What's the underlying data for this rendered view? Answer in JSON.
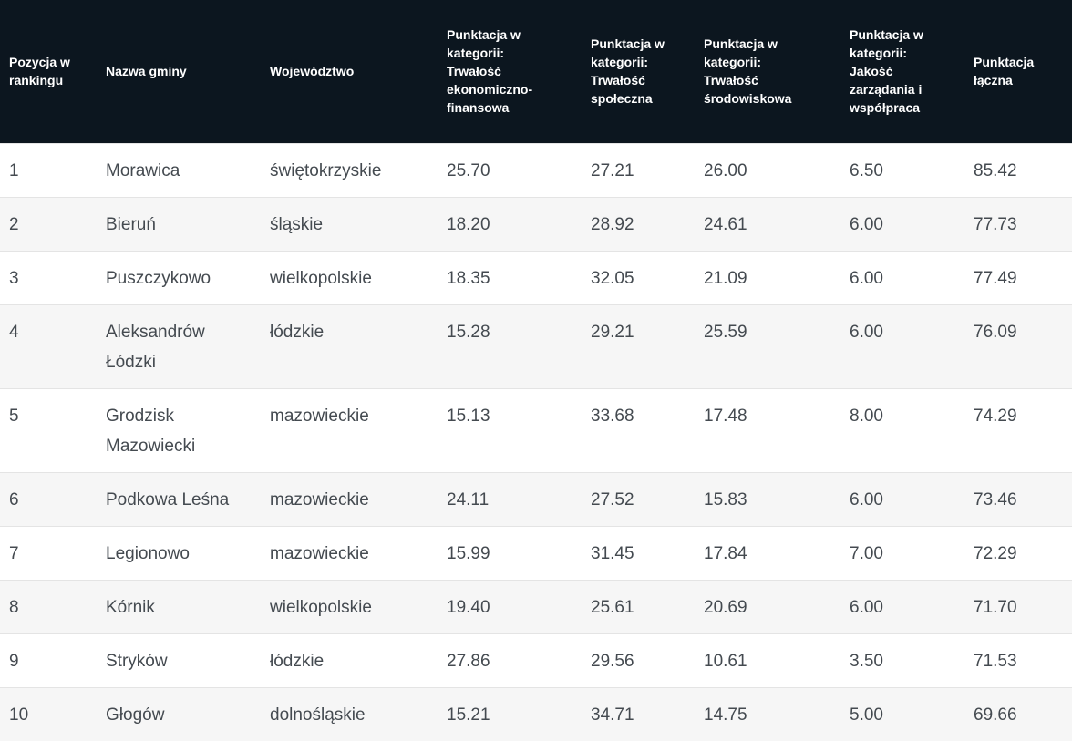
{
  "table": {
    "headers": [
      "Pozycja w\nrankingu",
      "Nazwa gminy",
      "Województwo",
      "Punktacja w\nkategorii:\nTrwałość\nekonomiczno-\nfinansowa",
      "Punktacja w\nkategorii:\nTrwałość\nspołeczna",
      "Punktacja w\nkategorii:\nTrwałość\nśrodowiskowa",
      "Punktacja w\nkategorii:\nJakość\nzarządania i\nwspółpraca",
      "Punktacja\nłączna"
    ],
    "rows": [
      [
        "1",
        "Morawica",
        "świętokrzyskie",
        "25.70",
        "27.21",
        "26.00",
        "6.50",
        "85.42"
      ],
      [
        "2",
        "Bieruń",
        "śląskie",
        "18.20",
        "28.92",
        "24.61",
        "6.00",
        "77.73"
      ],
      [
        "3",
        "Puszczykowo",
        "wielkopolskie",
        "18.35",
        "32.05",
        "21.09",
        "6.00",
        "77.49"
      ],
      [
        "4",
        "Aleksandrów Łódzki",
        "łódzkie",
        "15.28",
        "29.21",
        "25.59",
        "6.00",
        "76.09"
      ],
      [
        "5",
        "Grodzisk Mazowiecki",
        "mazowieckie",
        "15.13",
        "33.68",
        "17.48",
        "8.00",
        "74.29"
      ],
      [
        "6",
        "Podkowa Leśna",
        "mazowieckie",
        "24.11",
        "27.52",
        "15.83",
        "6.00",
        "73.46"
      ],
      [
        "7",
        "Legionowo",
        "mazowieckie",
        "15.99",
        "31.45",
        "17.84",
        "7.00",
        "72.29"
      ],
      [
        "8",
        "Kórnik",
        "wielkopolskie",
        "19.40",
        "25.61",
        "20.69",
        "6.00",
        "71.70"
      ],
      [
        "9",
        "Stryków",
        "łódzkie",
        "27.86",
        "29.56",
        "10.61",
        "3.50",
        "71.53"
      ],
      [
        "10",
        "Głogów",
        "dolnośląskie",
        "15.21",
        "34.71",
        "14.75",
        "5.00",
        "69.66"
      ]
    ]
  },
  "colors": {
    "header_bg": "#0c161f",
    "header_text": "#ffffff",
    "cell_text": "#444a50",
    "row_alt_bg": "#f6f6f6",
    "row_border": "#e4e4e4"
  }
}
